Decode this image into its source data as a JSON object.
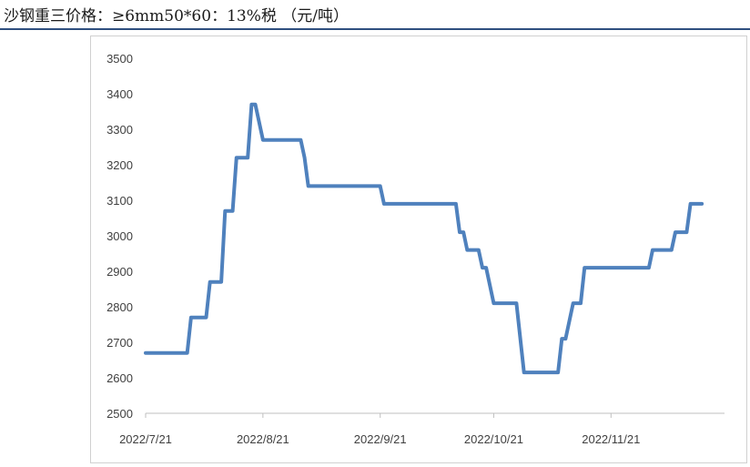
{
  "header": {
    "title": "沙钢重三价格：≥6mm50*60：13%税 （元/吨）"
  },
  "chart_data": {
    "type": "line",
    "title": "沙钢重三价格：≥6mm50*60：13%税 （元/吨）",
    "xlabel": "",
    "ylabel": "",
    "ylim": [
      2500,
      3500
    ],
    "yticks": [
      2500,
      2600,
      2700,
      2800,
      2900,
      3000,
      3100,
      3200,
      3300,
      3400,
      3500
    ],
    "xtick_labels": [
      "2022/7/21",
      "2022/8/21",
      "2022/9/21",
      "2022/10/21",
      "2022/11/21"
    ],
    "xlim": [
      "2022-07-21",
      "2022-12-21"
    ],
    "grid": false,
    "legend": "none",
    "series": [
      {
        "color": "#4f81bd",
        "points": [
          [
            "2022-07-21",
            2670
          ],
          [
            "2022-08-01",
            2670
          ],
          [
            "2022-08-02",
            2770
          ],
          [
            "2022-08-06",
            2770
          ],
          [
            "2022-08-07",
            2870
          ],
          [
            "2022-08-10",
            2870
          ],
          [
            "2022-08-11",
            3070
          ],
          [
            "2022-08-13",
            3070
          ],
          [
            "2022-08-14",
            3220
          ],
          [
            "2022-08-17",
            3220
          ],
          [
            "2022-08-18",
            3370
          ],
          [
            "2022-08-19",
            3370
          ],
          [
            "2022-08-21",
            3270
          ],
          [
            "2022-08-31",
            3270
          ],
          [
            "2022-09-01",
            3220
          ],
          [
            "2022-09-02",
            3140
          ],
          [
            "2022-09-21",
            3140
          ],
          [
            "2022-09-22",
            3090
          ],
          [
            "2022-10-11",
            3090
          ],
          [
            "2022-10-12",
            3010
          ],
          [
            "2022-10-13",
            3010
          ],
          [
            "2022-10-14",
            2960
          ],
          [
            "2022-10-17",
            2960
          ],
          [
            "2022-10-18",
            2910
          ],
          [
            "2022-10-19",
            2910
          ],
          [
            "2022-10-21",
            2810
          ],
          [
            "2022-10-27",
            2810
          ],
          [
            "2022-10-29",
            2615
          ],
          [
            "2022-11-07",
            2615
          ],
          [
            "2022-11-08",
            2710
          ],
          [
            "2022-11-09",
            2710
          ],
          [
            "2022-11-11",
            2810
          ],
          [
            "2022-11-13",
            2810
          ],
          [
            "2022-11-14",
            2910
          ],
          [
            "2022-12-01",
            2910
          ],
          [
            "2022-12-02",
            2960
          ],
          [
            "2022-12-07",
            2960
          ],
          [
            "2022-12-08",
            3010
          ],
          [
            "2022-12-11",
            3010
          ],
          [
            "2022-12-12",
            3090
          ],
          [
            "2022-12-15",
            3090
          ]
        ]
      }
    ]
  }
}
